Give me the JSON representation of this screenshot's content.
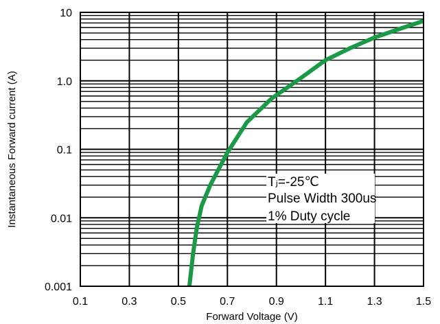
{
  "chart_data": {
    "type": "line",
    "xlabel": "Forward Voltage (V)",
    "ylabel": "Instantaneous Forward current (A)",
    "x_scale": "linear",
    "y_scale": "log",
    "xlim": [
      0.1,
      1.5
    ],
    "ylim": [
      0.001,
      10
    ],
    "x_ticks": [
      0.1,
      0.3,
      0.5,
      0.7,
      0.9,
      1.1,
      1.3,
      1.5
    ],
    "x_tick_labels": [
      "0.1",
      "0.3",
      "0.5",
      "0.7",
      "0.9",
      "1.1",
      "1.3",
      "1.5"
    ],
    "y_ticks": [
      0.001,
      0.01,
      0.1,
      1,
      10
    ],
    "y_tick_labels": [
      "0.001",
      "0.01",
      "0.1",
      "1.0",
      "10"
    ],
    "grid": true,
    "series": [
      {
        "color": "#1a9a46",
        "x": [
          0.545,
          0.56,
          0.575,
          0.595,
          0.63,
          0.7,
          0.78,
          0.88,
          1.0,
          1.1,
          1.2,
          1.3,
          1.4,
          1.5
        ],
        "y": [
          0.001,
          0.003,
          0.007,
          0.015,
          0.03,
          0.09,
          0.25,
          0.55,
          1.1,
          2.0,
          3.0,
          4.3,
          5.7,
          7.5
        ]
      }
    ],
    "annotation": {
      "lines": [
        "Tⱼ=-25℃",
        "Pulse Width 300us",
        "1% Duty cycle"
      ]
    }
  }
}
